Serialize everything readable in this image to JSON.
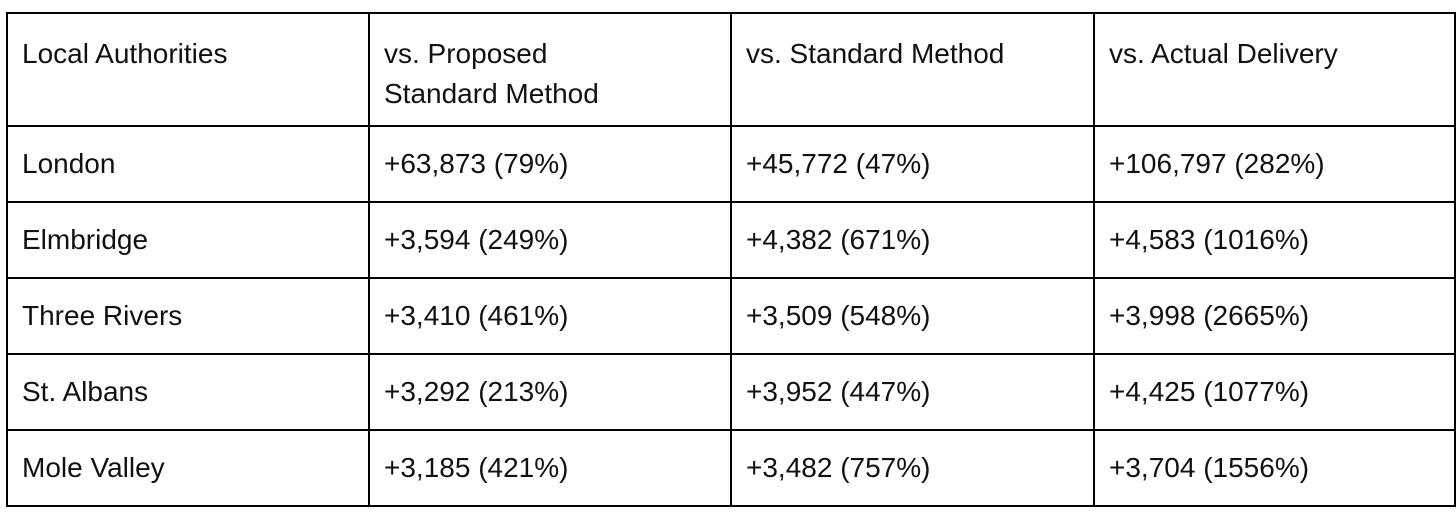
{
  "table": {
    "headers": [
      "Local Authorities",
      "vs. Proposed\nStandard Method",
      "vs. Standard Method",
      "vs. Actual Delivery"
    ],
    "rows": [
      [
        "London",
        "+63,873 (79%)",
        "+45,772 (47%)",
        "+106,797 (282%)"
      ],
      [
        "Elmbridge",
        "+3,594 (249%)",
        "+4,382 (671%)",
        "+4,583 (1016%)"
      ],
      [
        "Three Rivers",
        "+3,410 (461%)",
        "+3,509 (548%)",
        "+3,998 (2665%)"
      ],
      [
        "St. Albans",
        "+3,292 (213%)",
        "+3,952 (447%)",
        "+4,425 (1077%)"
      ],
      [
        "Mole Valley",
        "+3,185 (421%)",
        "+3,482 (757%)",
        "+3,704 (1556%)"
      ]
    ]
  }
}
